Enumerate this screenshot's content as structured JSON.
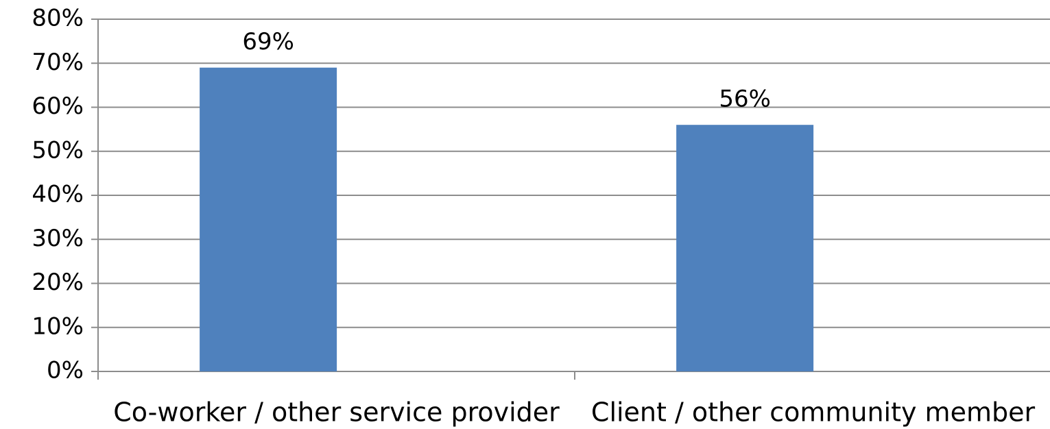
{
  "chart_data": {
    "type": "bar",
    "categories": [
      "Co-worker / other service provider",
      "Client / other community member"
    ],
    "values": [
      69,
      56
    ],
    "value_labels": [
      "69%",
      "56%"
    ],
    "color": "#4f81bd",
    "ylim": [
      0,
      80
    ],
    "yticks": [
      {
        "value": 0,
        "label": "0%"
      },
      {
        "value": 10,
        "label": "10%"
      },
      {
        "value": 20,
        "label": "20%"
      },
      {
        "value": 30,
        "label": "30%"
      },
      {
        "value": 40,
        "label": "40%"
      },
      {
        "value": 50,
        "label": "50%"
      },
      {
        "value": 60,
        "label": "60%"
      },
      {
        "value": 70,
        "label": "70%"
      },
      {
        "value": 80,
        "label": "80%"
      }
    ],
    "grid": true
  }
}
